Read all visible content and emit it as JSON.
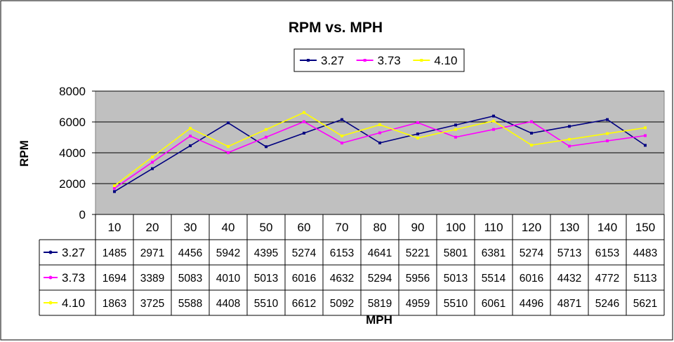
{
  "chart_data": {
    "type": "line",
    "title": "RPM vs. MPH",
    "xlabel": "MPH",
    "ylabel": "RPM",
    "ylim": [
      0,
      8000
    ],
    "yticks": [
      0,
      2000,
      4000,
      6000,
      8000
    ],
    "grid": true,
    "legend_position": "top-center",
    "data_table": true,
    "categories": [
      "10",
      "20",
      "30",
      "40",
      "50",
      "60",
      "70",
      "80",
      "90",
      "100",
      "110",
      "120",
      "130",
      "140",
      "150"
    ],
    "series": [
      {
        "name": "3.27",
        "color": "#000080",
        "values": [
          1485,
          2971,
          4456,
          5942,
          4395,
          5274,
          6153,
          4641,
          5221,
          5801,
          6381,
          5274,
          5713,
          6153,
          4483
        ]
      },
      {
        "name": "3.73",
        "color": "#ff00ff",
        "values": [
          1694,
          3389,
          5083,
          4010,
          5013,
          6016,
          4632,
          5294,
          5956,
          5013,
          5514,
          6016,
          4432,
          4772,
          5113
        ]
      },
      {
        "name": "4.10",
        "color": "#ffff00",
        "values": [
          1863,
          3725,
          5588,
          4408,
          5510,
          6612,
          5092,
          5819,
          4959,
          5510,
          6061,
          4496,
          4871,
          5246,
          5621
        ]
      }
    ],
    "plot_background": "#c0c0c0"
  }
}
